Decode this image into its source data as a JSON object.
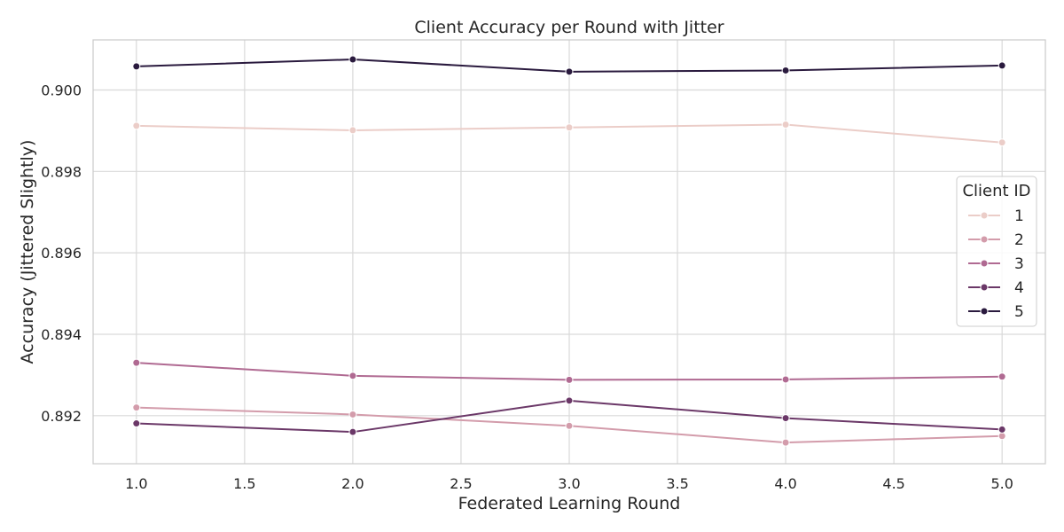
{
  "chart_data": {
    "type": "line",
    "title": "Client Accuracy per Round with Jitter",
    "xlabel": "Federated Learning Round",
    "ylabel": "Accuracy (Jittered Slightly)",
    "x": [
      1.0,
      2.0,
      3.0,
      4.0,
      5.0
    ],
    "xlim": [
      0.8,
      5.2
    ],
    "ylim": [
      0.89082,
      0.90123
    ],
    "xticks": [
      1.0,
      1.5,
      2.0,
      2.5,
      3.0,
      3.5,
      4.0,
      4.5,
      5.0
    ],
    "xtick_labels": [
      "1.0",
      "1.5",
      "2.0",
      "2.5",
      "3.0",
      "3.5",
      "4.0",
      "4.5",
      "5.0"
    ],
    "yticks": [
      0.892,
      0.894,
      0.896,
      0.898,
      0.9
    ],
    "ytick_labels": [
      "0.892",
      "0.894",
      "0.896",
      "0.898",
      "0.900"
    ],
    "grid": true,
    "legend": {
      "title": "Client ID",
      "placement": "right"
    },
    "series": [
      {
        "name": "1",
        "color": "#ebcdc8",
        "values": [
          0.89912,
          0.89901,
          0.89908,
          0.89915,
          0.89871
        ]
      },
      {
        "name": "2",
        "color": "#d39cab",
        "values": [
          0.8922,
          0.89203,
          0.89175,
          0.89134,
          0.8915
        ]
      },
      {
        "name": "3",
        "color": "#b06a92",
        "values": [
          0.8933,
          0.89298,
          0.89288,
          0.89289,
          0.89296
        ]
      },
      {
        "name": "4",
        "color": "#6b3868",
        "values": [
          0.89181,
          0.8916,
          0.89237,
          0.89194,
          0.89166
        ]
      },
      {
        "name": "5",
        "color": "#2a1a3e",
        "values": [
          0.90058,
          0.90075,
          0.90045,
          0.90048,
          0.9006
        ]
      }
    ]
  }
}
